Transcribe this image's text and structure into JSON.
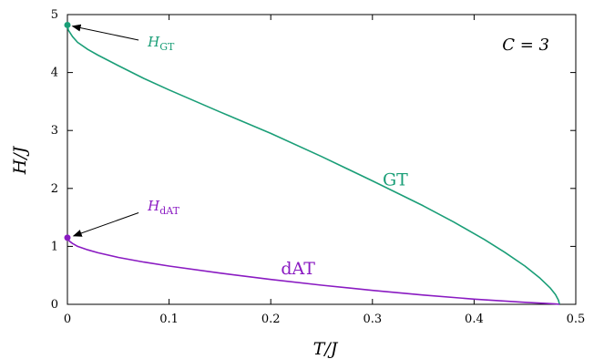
{
  "chart_data": {
    "type": "line",
    "xlabel": "T/J",
    "ylabel": "H/J",
    "xlim": [
      0,
      0.5
    ],
    "ylim": [
      0,
      5
    ],
    "xticks": [
      "0",
      "0.1",
      "0.2",
      "0.3",
      "0.4",
      "0.5"
    ],
    "yticks": [
      "0",
      "1",
      "2",
      "3",
      "4",
      "5"
    ],
    "panel_label": "C = 3",
    "series": [
      {
        "name": "GT",
        "color": "#1a9e77",
        "x": [
          0.0,
          0.001,
          0.005,
          0.01,
          0.02,
          0.03,
          0.05,
          0.075,
          0.1,
          0.15,
          0.2,
          0.25,
          0.3,
          0.35,
          0.38,
          0.41,
          0.43,
          0.45,
          0.465,
          0.475,
          0.48,
          0.483,
          0.484
        ],
        "y": [
          4.82,
          4.73,
          4.62,
          4.52,
          4.4,
          4.3,
          4.12,
          3.9,
          3.7,
          3.32,
          2.95,
          2.55,
          2.13,
          1.7,
          1.42,
          1.12,
          0.9,
          0.66,
          0.45,
          0.28,
          0.17,
          0.07,
          0.0
        ]
      },
      {
        "name": "dAT",
        "color": "#8a1bc2",
        "x": [
          0.0,
          0.002,
          0.005,
          0.01,
          0.02,
          0.03,
          0.05,
          0.075,
          0.1,
          0.15,
          0.2,
          0.25,
          0.3,
          0.35,
          0.4,
          0.45,
          0.47,
          0.48,
          0.484
        ],
        "y": [
          1.15,
          1.09,
          1.05,
          1.0,
          0.94,
          0.89,
          0.81,
          0.73,
          0.66,
          0.54,
          0.43,
          0.33,
          0.24,
          0.16,
          0.09,
          0.035,
          0.018,
          0.007,
          0.0
        ]
      }
    ],
    "endpoints": [
      {
        "x": 0.0,
        "y": 4.82,
        "color": "#1a9e77"
      },
      {
        "x": 0.0,
        "y": 1.15,
        "color": "#8a1bc2"
      }
    ],
    "curve_labels": [
      {
        "text": "GT",
        "x": 0.31,
        "y": 2.05,
        "color": "#1a9e77"
      },
      {
        "text": "dAT",
        "x": 0.21,
        "y": 0.52,
        "color": "#8a1bc2"
      }
    ],
    "annotations": [
      {
        "main": "H",
        "sub": "GT",
        "x": 0.079,
        "y": 4.45,
        "color": "#1a9e77",
        "arrow_to": [
          0.005,
          4.8
        ],
        "arrow_from": [
          0.07,
          4.56
        ]
      },
      {
        "main": "H",
        "sub": "dAT",
        "x": 0.079,
        "y": 1.62,
        "color": "#8a1bc2",
        "arrow_to": [
          0.006,
          1.18
        ],
        "arrow_from": [
          0.07,
          1.58
        ]
      }
    ]
  }
}
